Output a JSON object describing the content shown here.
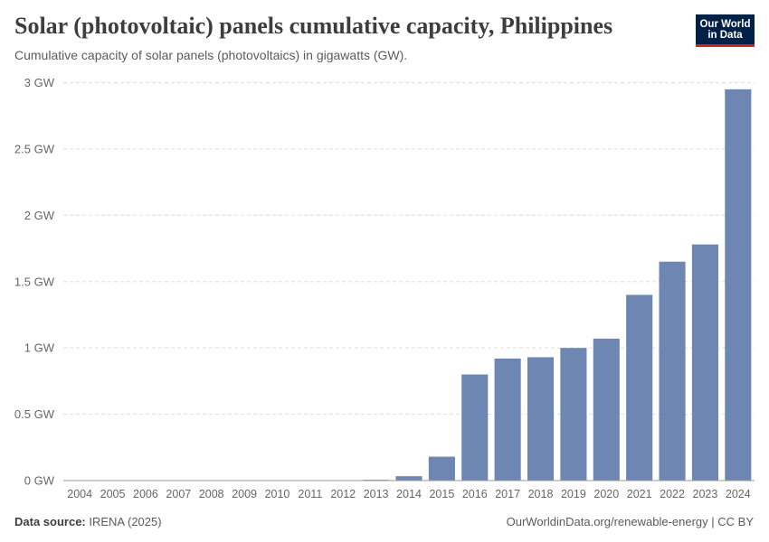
{
  "header": {
    "title": "Solar (photovoltaic) panels cumulative capacity, Philippines",
    "subtitle": "Cumulative capacity of solar panels (photovoltaics) in gigawatts (GW).",
    "logo_line1": "Our World",
    "logo_line2": "in Data"
  },
  "footer": {
    "source_label": "Data source:",
    "source_value": "IRENA (2025)",
    "link": "OurWorldinData.org/renewable-energy | CC BY"
  },
  "colors": {
    "bar": "#6d87b2",
    "grid": "#dddddd",
    "axis_text": "#666666",
    "title": "#3d3d3d",
    "logo_bg": "#002147",
    "logo_accent": "#ce261e"
  },
  "chart_data": {
    "type": "bar",
    "title": "Solar (photovoltaic) panels cumulative capacity, Philippines",
    "categories": [
      "2004",
      "2005",
      "2006",
      "2007",
      "2008",
      "2009",
      "2010",
      "2011",
      "2012",
      "2013",
      "2014",
      "2015",
      "2016",
      "2017",
      "2018",
      "2019",
      "2020",
      "2021",
      "2022",
      "2023",
      "2024"
    ],
    "values": [
      0.001,
      0.001,
      0.001,
      0.001,
      0.001,
      0.001,
      0.001,
      0.001,
      0.001,
      0.006,
      0.033,
      0.18,
      0.8,
      0.92,
      0.93,
      1.0,
      1.07,
      1.4,
      1.65,
      1.78,
      2.95
    ],
    "ylim": [
      0,
      3
    ],
    "yticks": [
      0,
      0.5,
      1,
      1.5,
      2,
      2.5,
      3
    ],
    "ytick_labels": [
      "0 GW",
      "0.5 GW",
      "1 GW",
      "1.5 GW",
      "2 GW",
      "2.5 GW",
      "3 GW"
    ],
    "grid": true,
    "xlabel": "",
    "ylabel": ""
  }
}
